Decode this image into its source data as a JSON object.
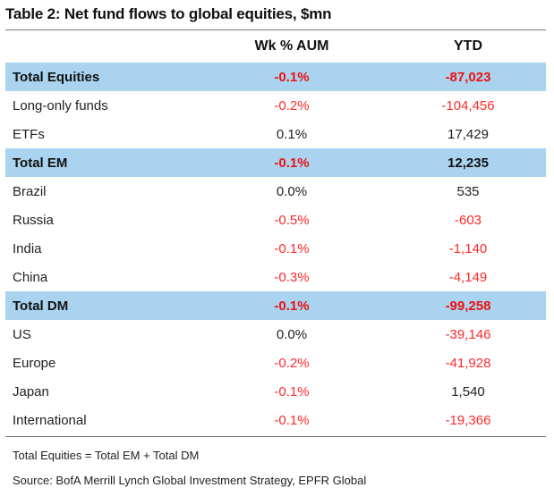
{
  "title": "Table 2: Net fund flows to global equities, $mn",
  "columns": {
    "wk": "Wk % AUM",
    "ytd": "YTD"
  },
  "rows": [
    {
      "name": "Total Equities",
      "wk": "-0.1%",
      "ytd": "-87,023",
      "total": true
    },
    {
      "name": "Long-only funds",
      "wk": "-0.2%",
      "ytd": "-104,456",
      "total": false
    },
    {
      "name": "ETFs",
      "wk": "0.1%",
      "ytd": "17,429",
      "total": false
    },
    {
      "name": "Total EM",
      "wk": "-0.1%",
      "ytd": "12,235",
      "total": true
    },
    {
      "name": "Brazil",
      "wk": "0.0%",
      "ytd": "535",
      "total": false
    },
    {
      "name": "Russia",
      "wk": "-0.5%",
      "ytd": "-603",
      "total": false
    },
    {
      "name": "India",
      "wk": "-0.1%",
      "ytd": "-1,140",
      "total": false
    },
    {
      "name": "China",
      "wk": "-0.3%",
      "ytd": "-4,149",
      "total": false
    },
    {
      "name": "Total DM",
      "wk": "-0.1%",
      "ytd": "-99,258",
      "total": true
    },
    {
      "name": "US",
      "wk": "0.0%",
      "ytd": "-39,146",
      "total": false
    },
    {
      "name": "Europe",
      "wk": "-0.2%",
      "ytd": "-41,928",
      "total": false
    },
    {
      "name": "Japan",
      "wk": "-0.1%",
      "ytd": "1,540",
      "total": false
    },
    {
      "name": "International",
      "wk": "-0.1%",
      "ytd": "-19,366",
      "total": false
    }
  ],
  "notes": [
    "Total Equities = Total EM + Total DM",
    "Source:  BofA Merrill Lynch Global Investment Strategy, EPFR Global"
  ],
  "colors": {
    "total_row_bg": "#a9d3ef",
    "negative_text": "#ff2a2a"
  }
}
